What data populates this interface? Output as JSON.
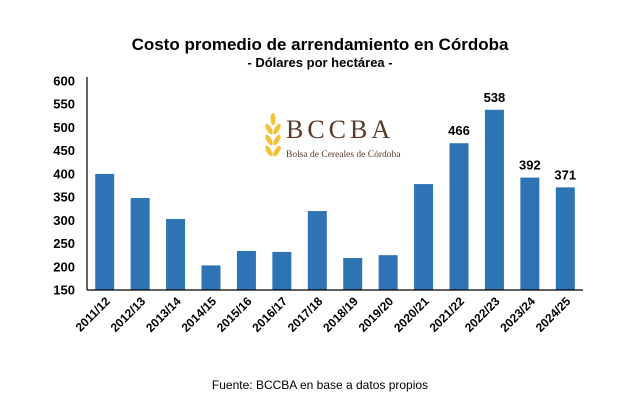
{
  "chart_data": {
    "type": "bar",
    "title": "Costo promedio de arrendamiento en Córdoba",
    "subtitle": "- Dólares por hectárea -",
    "categories": [
      "2011/12",
      "2012/13",
      "2013/14",
      "2014/15",
      "2015/16",
      "2016/17",
      "2017/18",
      "2018/19",
      "2019/20",
      "2020/21",
      "2021/22",
      "2022/23",
      "2023/24",
      "2024/25"
    ],
    "values": [
      400,
      348,
      303,
      203,
      234,
      232,
      320,
      219,
      225,
      378,
      466,
      538,
      392,
      371
    ],
    "data_labels": {
      "10": "466",
      "11": "538",
      "12": "392",
      "13": "371"
    },
    "ylim": [
      150,
      600
    ],
    "yticks": [
      150,
      200,
      250,
      300,
      350,
      400,
      450,
      500,
      550,
      600
    ],
    "xlabel": "",
    "ylabel": "",
    "grid": false,
    "bar_color": "#2e74b5"
  },
  "logo": {
    "name": "BCCBA",
    "tagline": "Bolsa de Cereales de Córdoba"
  },
  "footer": "Fuente: BCCBA en base a datos propios"
}
